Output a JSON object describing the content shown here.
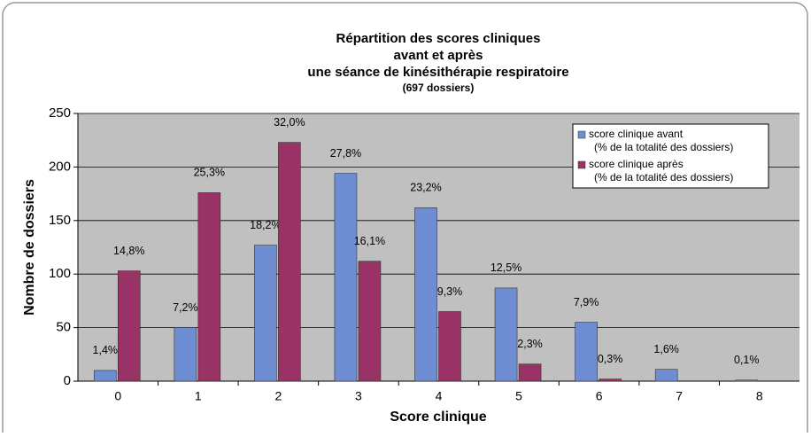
{
  "chart_data": {
    "type": "bar",
    "title": [
      "Répartition des scores cliniques",
      "avant et après",
      "une séance de kinésithérapie respiratoire"
    ],
    "subtitle": "(697 dossiers)",
    "x_label": "Score clinique",
    "y_label": "Nombre de dossiers",
    "categories": [
      "0",
      "1",
      "2",
      "3",
      "4",
      "5",
      "6",
      "7",
      "8"
    ],
    "series": [
      {
        "name": [
          "score clinique avant",
          "(% de la totalité des dossiers)"
        ],
        "color": "#6f8dd2",
        "values": [
          10,
          50,
          127,
          194,
          162,
          87,
          55,
          11,
          1
        ],
        "value_labels": [
          "1,4%",
          "7,2%",
          "18,2%",
          "27,8%",
          "23,2%",
          "12,5%",
          "7,9%",
          "1,6%",
          "0,1%"
        ]
      },
      {
        "name": [
          "score clinique après",
          "(% de la totalité des dossiers)"
        ],
        "color": "#993366",
        "values": [
          103,
          176,
          223,
          112,
          65,
          16,
          2,
          0,
          0
        ],
        "value_labels": [
          "14,8%",
          "25,3%",
          "32,0%",
          "16,1%",
          "9,3%",
          "2,3%",
          "0,3%",
          null,
          null
        ]
      }
    ],
    "ylim": [
      0,
      250
    ],
    "yticks": [
      0,
      50,
      100,
      150,
      200,
      250
    ],
    "grid": true,
    "legend": "top-right"
  }
}
